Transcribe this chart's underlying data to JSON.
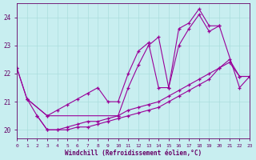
{
  "xlabel": "Windchill (Refroidissement éolien,°C)",
  "ylabel": "",
  "bg_color": "#c8eef0",
  "line_color": "#990099",
  "grid_color": "#aadddd",
  "axis_color": "#660066",
  "xlim": [
    0,
    23
  ],
  "ylim": [
    19.7,
    24.5
  ],
  "yticks": [
    20,
    21,
    22,
    23,
    24
  ],
  "xticks": [
    0,
    1,
    2,
    3,
    4,
    5,
    6,
    7,
    8,
    9,
    10,
    11,
    12,
    13,
    14,
    15,
    16,
    17,
    18,
    19,
    20,
    21,
    22,
    23
  ],
  "lines": [
    {
      "x": [
        0,
        1,
        3,
        10,
        11,
        12,
        13,
        14,
        15,
        16,
        17,
        18,
        19,
        20
      ],
      "y": [
        22.2,
        21.1,
        20.5,
        20.5,
        21.5,
        22.3,
        23.0,
        23.3,
        21.5,
        23.6,
        23.8,
        24.3,
        23.7,
        23.7
      ]
    },
    {
      "x": [
        0,
        1,
        3,
        4,
        5,
        6,
        7,
        8,
        9,
        10,
        11,
        12,
        13,
        14,
        15,
        16,
        17,
        18,
        19,
        20,
        22,
        23
      ],
      "y": [
        22.2,
        21.1,
        20.5,
        20.7,
        20.9,
        21.1,
        21.3,
        21.5,
        21.0,
        21.0,
        22.0,
        22.8,
        23.1,
        21.5,
        21.5,
        23.0,
        23.6,
        24.1,
        23.5,
        23.7,
        21.5,
        21.9
      ]
    },
    {
      "x": [
        1,
        2,
        3,
        4,
        5,
        6,
        7,
        8,
        9,
        10,
        11,
        12,
        13,
        14,
        15,
        16,
        17,
        18,
        19,
        20,
        21,
        22,
        23
      ],
      "y": [
        21.1,
        20.5,
        20.0,
        20.0,
        20.1,
        20.2,
        20.3,
        20.3,
        20.4,
        20.5,
        20.7,
        20.8,
        20.9,
        21.0,
        21.2,
        21.4,
        21.6,
        21.8,
        22.0,
        22.2,
        22.4,
        21.9,
        21.9
      ]
    },
    {
      "x": [
        2,
        3,
        4,
        5,
        6,
        7,
        8,
        9,
        10,
        11,
        12,
        13,
        14,
        15,
        16,
        17,
        18,
        19,
        20,
        21,
        22,
        23
      ],
      "y": [
        20.5,
        20.0,
        20.0,
        20.0,
        20.1,
        20.1,
        20.2,
        20.3,
        20.4,
        20.5,
        20.6,
        20.7,
        20.8,
        21.0,
        21.2,
        21.4,
        21.6,
        21.8,
        22.2,
        22.5,
        21.9,
        21.9
      ]
    }
  ]
}
